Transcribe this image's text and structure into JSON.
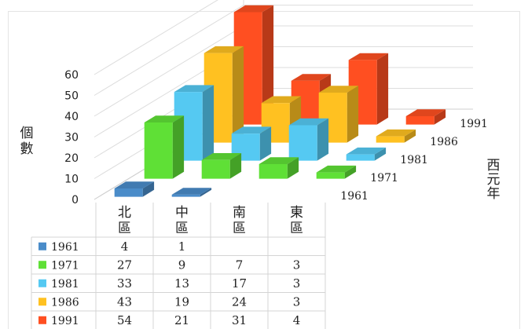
{
  "chart_data": {
    "type": "bar",
    "subtype": "3d-clustered-column-with-data-table",
    "categories": [
      "北區",
      "中區",
      "南區",
      "東區"
    ],
    "series": [
      {
        "name": "1961",
        "color": "#4a8cc9",
        "values": [
          4,
          1,
          null,
          null
        ]
      },
      {
        "name": "1971",
        "color": "#5fe036",
        "values": [
          27,
          9,
          7,
          3
        ]
      },
      {
        "name": "1981",
        "color": "#55c9f2",
        "values": [
          33,
          13,
          17,
          3
        ]
      },
      {
        "name": "1986",
        "color": "#ffc121",
        "values": [
          43,
          19,
          24,
          3
        ]
      },
      {
        "name": "1991",
        "color": "#ff4f21",
        "values": [
          54,
          21,
          31,
          4
        ]
      }
    ],
    "ylabel": "個數",
    "depth_label": "西元年",
    "ylim": [
      0,
      60
    ],
    "yticks": [
      0,
      10,
      20,
      30,
      40,
      50,
      60
    ],
    "grid": true,
    "legend": "data-table"
  }
}
